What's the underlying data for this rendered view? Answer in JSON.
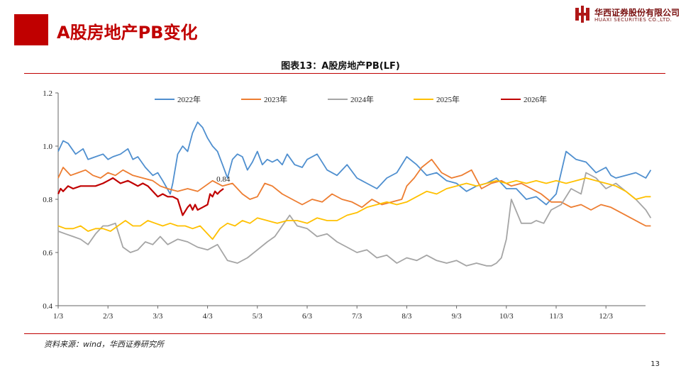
{
  "header": {
    "title": "A股房地产PB变化",
    "logo_cn": "华西证券股份有限公司",
    "logo_en": "HUAXI SECURITIES CO.,LTD."
  },
  "chart_caption": "图表13：A股房地产PB(LF)",
  "source": "资料来源：wind，华西证券研究所",
  "page_number": "13",
  "chart_data": {
    "type": "line",
    "title": "图表13：A股房地产PB(LF)",
    "xlabel": "",
    "ylabel": "",
    "ylim": [
      0.4,
      1.2
    ],
    "y_ticks": [
      "0.4",
      "0.6",
      "0.8",
      "1.0",
      "1.2"
    ],
    "x_domain": [
      0,
      12
    ],
    "x_ticks": [
      "1/3",
      "2/3",
      "3/3",
      "4/3",
      "5/3",
      "6/3",
      "7/3",
      "8/3",
      "9/3",
      "10/3",
      "11/3",
      "12/3"
    ],
    "grid": false,
    "legend_position": "top",
    "annotation": {
      "series": "2026年",
      "text": "0.84",
      "x": 3.32,
      "y": 0.84
    },
    "series": [
      {
        "name": "2022年",
        "color": "#4f8fcf",
        "x": [
          0,
          0.1,
          0.2,
          0.35,
          0.5,
          0.6,
          0.75,
          0.9,
          1.0,
          1.1,
          1.25,
          1.4,
          1.5,
          1.6,
          1.75,
          1.9,
          2.0,
          2.1,
          2.25,
          2.3,
          2.4,
          2.5,
          2.6,
          2.7,
          2.8,
          2.9,
          3.0,
          3.1,
          3.2,
          3.3,
          3.4,
          3.5,
          3.6,
          3.7,
          3.8,
          3.9,
          4.0,
          4.1,
          4.2,
          4.3,
          4.4,
          4.5,
          4.6,
          4.75,
          4.9,
          5.0,
          5.2,
          5.4,
          5.6,
          5.8,
          6.0,
          6.2,
          6.4,
          6.6,
          6.8,
          7.0,
          7.2,
          7.4,
          7.6,
          7.8,
          8.0,
          8.2,
          8.4,
          8.6,
          8.8,
          9.0,
          9.2,
          9.4,
          9.6,
          9.8,
          10.0,
          10.2,
          10.4,
          10.6,
          10.8,
          11.0,
          11.1,
          11.2,
          11.4,
          11.6,
          11.8,
          11.9
        ],
        "y": [
          0.98,
          1.02,
          1.01,
          0.97,
          0.99,
          0.95,
          0.96,
          0.97,
          0.95,
          0.96,
          0.97,
          0.99,
          0.95,
          0.96,
          0.92,
          0.89,
          0.9,
          0.87,
          0.82,
          0.86,
          0.97,
          1.0,
          0.98,
          1.05,
          1.09,
          1.07,
          1.03,
          1.0,
          0.98,
          0.93,
          0.88,
          0.95,
          0.97,
          0.96,
          0.91,
          0.94,
          0.98,
          0.93,
          0.95,
          0.94,
          0.95,
          0.93,
          0.97,
          0.93,
          0.92,
          0.95,
          0.97,
          0.91,
          0.89,
          0.93,
          0.88,
          0.86,
          0.84,
          0.88,
          0.9,
          0.96,
          0.93,
          0.89,
          0.9,
          0.87,
          0.86,
          0.83,
          0.85,
          0.86,
          0.88,
          0.84,
          0.84,
          0.8,
          0.81,
          0.78,
          0.82,
          0.98,
          0.95,
          0.94,
          0.9,
          0.92,
          0.89,
          0.88,
          0.89,
          0.9,
          0.88,
          0.91
        ]
      },
      {
        "name": "2023年",
        "color": "#ed7d31",
        "x": [
          0,
          0.1,
          0.25,
          0.4,
          0.55,
          0.7,
          0.85,
          1.0,
          1.15,
          1.3,
          1.5,
          1.7,
          1.9,
          2.05,
          2.2,
          2.4,
          2.6,
          2.8,
          2.95,
          3.1,
          3.3,
          3.5,
          3.7,
          3.85,
          4.0,
          4.15,
          4.3,
          4.5,
          4.7,
          4.9,
          5.1,
          5.3,
          5.5,
          5.7,
          5.9,
          6.1,
          6.3,
          6.5,
          6.7,
          6.9,
          7.0,
          7.15,
          7.3,
          7.5,
          7.7,
          7.9,
          8.1,
          8.3,
          8.5,
          8.7,
          8.9,
          9.1,
          9.3,
          9.5,
          9.7,
          9.9,
          10.1,
          10.3,
          10.5,
          10.7,
          10.9,
          11.1,
          11.3,
          11.5,
          11.7,
          11.8,
          11.9
        ],
        "y": [
          0.88,
          0.92,
          0.89,
          0.9,
          0.91,
          0.89,
          0.88,
          0.9,
          0.89,
          0.91,
          0.89,
          0.88,
          0.87,
          0.85,
          0.84,
          0.83,
          0.84,
          0.83,
          0.85,
          0.87,
          0.85,
          0.86,
          0.82,
          0.8,
          0.81,
          0.86,
          0.85,
          0.82,
          0.8,
          0.78,
          0.8,
          0.79,
          0.82,
          0.8,
          0.79,
          0.77,
          0.8,
          0.78,
          0.79,
          0.8,
          0.85,
          0.88,
          0.92,
          0.95,
          0.9,
          0.88,
          0.89,
          0.91,
          0.84,
          0.86,
          0.87,
          0.85,
          0.86,
          0.84,
          0.82,
          0.79,
          0.79,
          0.77,
          0.78,
          0.76,
          0.78,
          0.77,
          0.75,
          0.73,
          0.71,
          0.7,
          0.7
        ]
      },
      {
        "name": "2024年",
        "color": "#a5a5a5",
        "x": [
          0,
          0.15,
          0.3,
          0.45,
          0.6,
          0.75,
          0.9,
          1.0,
          1.15,
          1.3,
          1.45,
          1.6,
          1.75,
          1.9,
          2.05,
          2.2,
          2.4,
          2.6,
          2.8,
          3.0,
          3.2,
          3.4,
          3.6,
          3.8,
          4.0,
          4.2,
          4.35,
          4.5,
          4.65,
          4.8,
          5.0,
          5.2,
          5.4,
          5.6,
          5.8,
          6.0,
          6.2,
          6.4,
          6.6,
          6.8,
          7.0,
          7.2,
          7.4,
          7.6,
          7.8,
          8.0,
          8.2,
          8.4,
          8.6,
          8.7,
          8.8,
          8.9,
          9.0,
          9.1,
          9.3,
          9.5,
          9.6,
          9.75,
          9.9,
          10.1,
          10.3,
          10.5,
          10.6,
          10.8,
          11.0,
          11.2,
          11.4,
          11.6,
          11.8,
          11.9
        ],
        "y": [
          0.68,
          0.67,
          0.66,
          0.65,
          0.63,
          0.67,
          0.7,
          0.7,
          0.71,
          0.62,
          0.6,
          0.61,
          0.64,
          0.63,
          0.66,
          0.63,
          0.65,
          0.64,
          0.62,
          0.61,
          0.63,
          0.57,
          0.56,
          0.58,
          0.61,
          0.64,
          0.66,
          0.7,
          0.74,
          0.7,
          0.69,
          0.66,
          0.67,
          0.64,
          0.62,
          0.6,
          0.61,
          0.58,
          0.59,
          0.56,
          0.58,
          0.57,
          0.59,
          0.57,
          0.56,
          0.57,
          0.55,
          0.56,
          0.55,
          0.55,
          0.56,
          0.58,
          0.65,
          0.8,
          0.71,
          0.71,
          0.72,
          0.71,
          0.76,
          0.78,
          0.84,
          0.82,
          0.9,
          0.88,
          0.84,
          0.86,
          0.83,
          0.8,
          0.76,
          0.73
        ]
      },
      {
        "name": "2025年",
        "color": "#ffc000",
        "x": [
          0,
          0.15,
          0.3,
          0.45,
          0.6,
          0.75,
          0.9,
          1.05,
          1.2,
          1.35,
          1.5,
          1.65,
          1.8,
          1.95,
          2.1,
          2.25,
          2.4,
          2.55,
          2.7,
          2.85,
          3.0,
          3.1,
          3.25,
          3.4,
          3.55,
          3.7,
          3.85,
          4.0,
          4.2,
          4.4,
          4.6,
          4.8,
          5.0,
          5.2,
          5.4,
          5.6,
          5.8,
          6.0,
          6.2,
          6.4,
          6.6,
          6.8,
          7.0,
          7.2,
          7.4,
          7.6,
          7.8,
          8.0,
          8.2,
          8.4,
          8.6,
          8.8,
          9.0,
          9.2,
          9.4,
          9.6,
          9.8,
          10.0,
          10.2,
          10.4,
          10.6,
          10.8,
          11.0,
          11.2,
          11.4,
          11.6,
          11.8,
          11.9
        ],
        "y": [
          0.7,
          0.69,
          0.69,
          0.7,
          0.68,
          0.69,
          0.69,
          0.68,
          0.7,
          0.72,
          0.7,
          0.7,
          0.72,
          0.71,
          0.7,
          0.71,
          0.7,
          0.7,
          0.69,
          0.7,
          0.67,
          0.65,
          0.69,
          0.71,
          0.7,
          0.72,
          0.71,
          0.73,
          0.72,
          0.71,
          0.72,
          0.72,
          0.71,
          0.73,
          0.72,
          0.72,
          0.74,
          0.75,
          0.77,
          0.78,
          0.79,
          0.78,
          0.79,
          0.81,
          0.83,
          0.82,
          0.84,
          0.85,
          0.86,
          0.85,
          0.86,
          0.87,
          0.86,
          0.87,
          0.86,
          0.87,
          0.86,
          0.87,
          0.86,
          0.87,
          0.88,
          0.87,
          0.86,
          0.85,
          0.83,
          0.8,
          0.81,
          0.81
        ]
      },
      {
        "name": "2026年",
        "color": "#c00000",
        "x": [
          0,
          0.05,
          0.1,
          0.2,
          0.3,
          0.45,
          0.6,
          0.75,
          0.9,
          1.0,
          1.1,
          1.25,
          1.4,
          1.5,
          1.6,
          1.7,
          1.8,
          1.9,
          2.0,
          2.1,
          2.2,
          2.3,
          2.4,
          2.5,
          2.6,
          2.65,
          2.7,
          2.75,
          2.8,
          2.9,
          3.0,
          3.05,
          3.1,
          3.15,
          3.2,
          3.25,
          3.32
        ],
        "y": [
          0.82,
          0.84,
          0.83,
          0.85,
          0.84,
          0.85,
          0.85,
          0.85,
          0.86,
          0.87,
          0.88,
          0.86,
          0.87,
          0.86,
          0.85,
          0.86,
          0.85,
          0.83,
          0.81,
          0.82,
          0.81,
          0.81,
          0.8,
          0.74,
          0.77,
          0.78,
          0.76,
          0.78,
          0.76,
          0.77,
          0.78,
          0.82,
          0.81,
          0.83,
          0.82,
          0.83,
          0.84
        ]
      }
    ]
  }
}
